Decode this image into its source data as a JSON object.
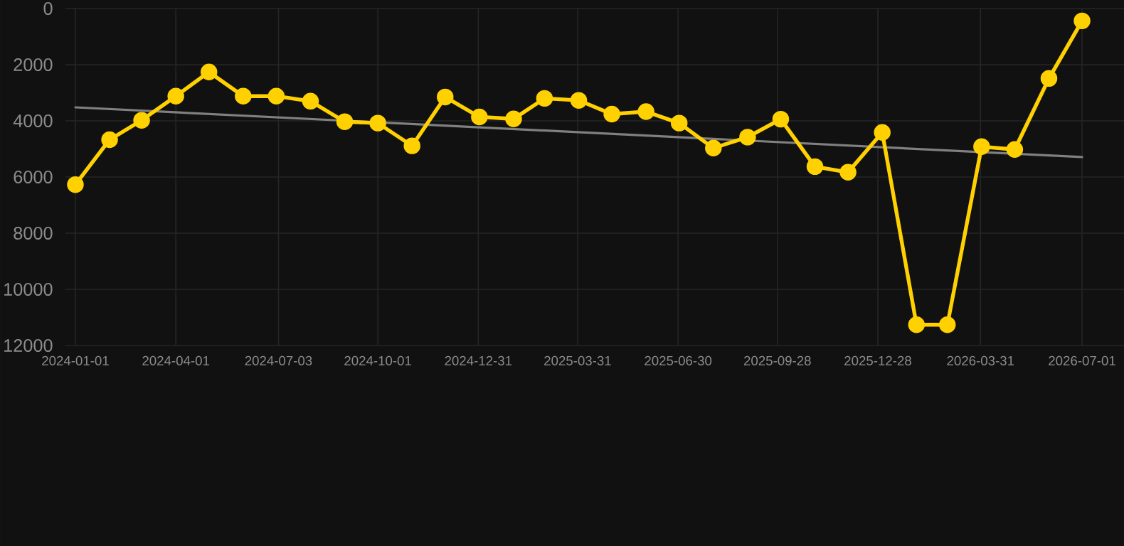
{
  "chart_data": {
    "type": "line",
    "ylim": [
      12000,
      0
    ],
    "yticks": [
      0,
      2000,
      4000,
      6000,
      8000,
      10000,
      12000
    ],
    "xlim": [
      "2023-12-23",
      "2026-08-08"
    ],
    "xticks": [
      "2024-01-01",
      "2024-04-01",
      "2024-07-03",
      "2024-10-01",
      "2024-12-31",
      "2025-03-31",
      "2025-06-30",
      "2025-09-28",
      "2025-12-28",
      "2026-03-31",
      "2026-07-01"
    ],
    "grid": true,
    "marker": "circle",
    "line_style": "solid",
    "series": [
      {
        "color": "#808080",
        "marker": "none",
        "x": [
          "2024-01-01",
          "2026-07-01"
        ],
        "values": [
          3520,
          5290
        ]
      },
      {
        "color": "#ffd100",
        "x": [
          "2024-01-01",
          "2024-02-01",
          "2024-03-01",
          "2024-04-01",
          "2024-05-01",
          "2024-06-01",
          "2024-07-01",
          "2024-08-01",
          "2024-09-01",
          "2024-10-01",
          "2024-11-01",
          "2024-12-01",
          "2025-01-01",
          "2025-02-01",
          "2025-03-01",
          "2025-04-01",
          "2025-05-01",
          "2025-06-01",
          "2025-07-01",
          "2025-08-01",
          "2025-09-01",
          "2025-10-01",
          "2025-11-01",
          "2025-12-01",
          "2026-01-01",
          "2026-02-01",
          "2026-03-01",
          "2026-04-01",
          "2026-05-01",
          "2026-06-01",
          "2026-07-01"
        ],
        "values": [
          6270,
          4670,
          3980,
          3120,
          2260,
          3120,
          3120,
          3300,
          4030,
          4080,
          4890,
          3150,
          3860,
          3930,
          3200,
          3270,
          3760,
          3670,
          4080,
          4970,
          4580,
          3940,
          5630,
          5830,
          4410,
          11260,
          11260,
          4920,
          5020,
          2490,
          440
        ]
      }
    ]
  }
}
